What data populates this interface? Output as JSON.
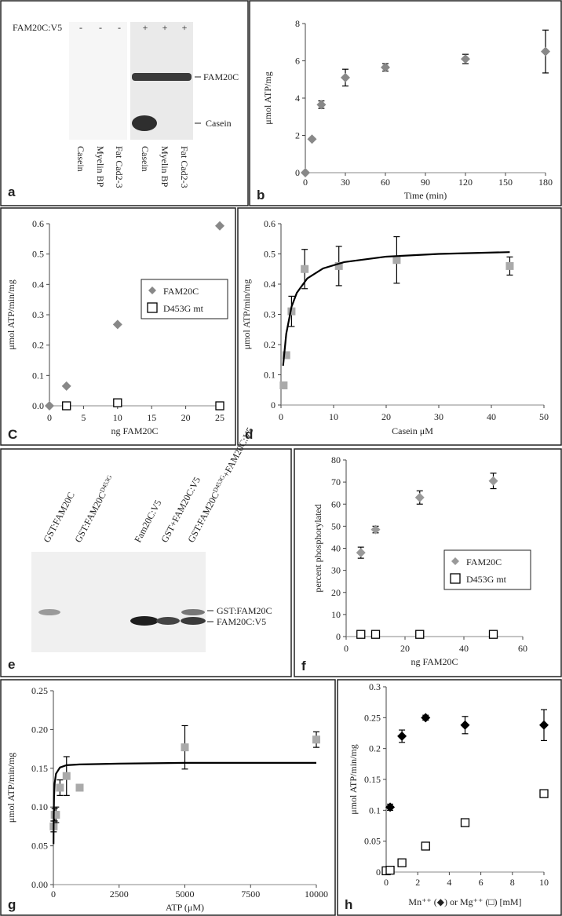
{
  "gel_a": {
    "panel_label": "a",
    "row_label": "FAM20C:V5",
    "signs": [
      "-",
      "-",
      "-",
      "+",
      "+",
      "+"
    ],
    "band_labels": [
      "FAM20C",
      "Casein"
    ],
    "lanes": [
      "Casein",
      "Myelin BP",
      "Fat Cad2-3",
      "Casein",
      "Myelin BP",
      "Fat Cad2-3"
    ]
  },
  "gel_e": {
    "panel_label": "e",
    "lanes": [
      "GST:FAM20C",
      [
        "GST:FAM20C",
        "D453G"
      ],
      "Fam20C:V5",
      "GST+FAM20C:V5",
      [
        "GST:FAM20C",
        "D453G",
        "+FAM20C:V5"
      ]
    ],
    "band_labels": [
      "GST:FAM20C",
      "FAM20C:V5"
    ]
  },
  "chart_data": [
    {
      "type": "scatter",
      "panel_label": "b",
      "xlabel": "Time (min)",
      "ylabel": "μmol ATP/mg",
      "xlim": [
        0,
        180
      ],
      "xticks": [
        0,
        30,
        60,
        90,
        120,
        150,
        180
      ],
      "ylim": [
        0,
        8
      ],
      "yticks": [
        0,
        2,
        4,
        6,
        8
      ],
      "series": [
        {
          "marker": "diamond",
          "color": "#888888",
          "x": [
            0,
            5,
            12,
            30,
            60,
            120,
            180
          ],
          "values": [
            0,
            1.8,
            3.65,
            5.1,
            5.65,
            6.1,
            6.5
          ],
          "errors": [
            0,
            0,
            0.2,
            0.45,
            0.2,
            0.25,
            1.15
          ]
        }
      ]
    },
    {
      "type": "scatter",
      "panel_label": "C",
      "xlabel": "ng FAM20C",
      "ylabel": "μmol ATP/min/mg",
      "xlim": [
        0,
        25
      ],
      "xticks": [
        0,
        5,
        10,
        15,
        20,
        25
      ],
      "ylim": [
        0,
        0.6
      ],
      "yticks": [
        {
          "value": 0,
          "label": "0.0"
        },
        0.1,
        0.2,
        0.3,
        0.4,
        0.5,
        0.6
      ],
      "legend": "center right",
      "series": [
        {
          "name": "FAM20C",
          "marker": "diamond",
          "color": "#888888",
          "x": [
            0,
            2.5,
            10,
            25
          ],
          "values": [
            0,
            0.065,
            0.268,
            0.593
          ]
        },
        {
          "name": "D453G mt",
          "marker": "open-square",
          "color": "#000000",
          "x": [
            2.5,
            10,
            25
          ],
          "values": [
            0,
            0.01,
            0
          ]
        }
      ]
    },
    {
      "type": "scatter",
      "panel_label": "d",
      "xlabel": "Casein μM",
      "ylabel": "μmol ATP/min/mg",
      "xlim": [
        0,
        50
      ],
      "xticks": [
        0,
        10,
        20,
        30,
        40,
        50
      ],
      "ylim": [
        0,
        0.6
      ],
      "yticks": [
        0,
        0.1,
        0.2,
        0.3,
        0.4,
        0.5,
        0.6
      ],
      "series": [
        {
          "marker": "square",
          "color": "#aaaaaa",
          "x": [
            0.5,
            1,
            2,
            4.5,
            11,
            22,
            43.5
          ],
          "values": [
            0.065,
            0.165,
            0.31,
            0.45,
            0.46,
            0.48,
            0.46
          ],
          "errors": [
            null,
            null,
            0.05,
            0.065,
            0.065,
            0.077,
            0.03
          ]
        },
        {
          "marker": "line",
          "color": "#000000",
          "x": [
            0.4,
            1,
            2,
            3,
            5,
            8,
            12,
            20,
            30,
            43.5
          ],
          "values": [
            0.13,
            0.236,
            0.325,
            0.371,
            0.419,
            0.452,
            0.473,
            0.491,
            0.5,
            0.506
          ]
        }
      ]
    },
    {
      "type": "scatter",
      "panel_label": "f",
      "xlabel": "ng FAM20C",
      "ylabel": "percent phosphorylated",
      "xlim": [
        0,
        60
      ],
      "xticks": [
        0,
        20,
        40,
        60
      ],
      "ylim": [
        0,
        80
      ],
      "yticks": [
        0,
        10,
        20,
        30,
        40,
        50,
        60,
        70,
        80
      ],
      "legend": "lower right",
      "series": [
        {
          "name": "FAM20C",
          "marker": "diamond",
          "color": "#999999",
          "x": [
            5,
            10,
            25,
            50
          ],
          "values": [
            38,
            48.5,
            63,
            70.5
          ],
          "errors": [
            2.5,
            1.5,
            3,
            3.5
          ]
        },
        {
          "name": "D453G mt",
          "marker": "open-square",
          "color": "#000000",
          "x": [
            5,
            10,
            25,
            50
          ],
          "values": [
            1,
            1,
            1,
            1
          ]
        }
      ]
    },
    {
      "type": "scatter",
      "panel_label": "g",
      "xlabel": "ATP (μM)",
      "ylabel": "μmol ATP/min/mg",
      "xlim": [
        0,
        10000
      ],
      "xticks": [
        0,
        2500,
        5000,
        7500,
        10000
      ],
      "ylim": [
        0,
        0.25
      ],
      "yticks": [
        {
          "value": 0,
          "label": "0.00"
        },
        0.05,
        {
          "value": 0.1,
          "label": "0.10"
        },
        0.15,
        {
          "value": 0.2,
          "label": "0.20"
        },
        0.25
      ],
      "series": [
        {
          "marker": "square",
          "color": "#aaaaaa",
          "x": [
            10,
            50,
            100,
            250,
            500,
            1000,
            5000,
            10000
          ],
          "values": [
            0.075,
            0.09,
            0.09,
            0.125,
            0.14,
            0.125,
            0.177,
            0.187
          ],
          "errors": [
            0.007,
            0.008,
            0.01,
            0.01,
            0.025,
            0.004,
            0.028,
            0.01
          ]
        },
        {
          "marker": "line",
          "color": "#000000",
          "x": [
            5,
            10,
            25,
            50,
            100,
            250,
            500,
            1000,
            2500,
            5000,
            10000
          ],
          "values": [
            0.0523,
            0.0785,
            0.112,
            0.131,
            0.143,
            0.151,
            0.154,
            0.155,
            0.156,
            0.157,
            0.157
          ]
        }
      ]
    },
    {
      "type": "scatter",
      "panel_label": "h",
      "xlabel": "Mn⁺⁺ (◆) or Mg⁺⁺ (□) [mM]",
      "ylabel": "μmol ATP/min/mg",
      "xlim": [
        0,
        10
      ],
      "xticks": [
        0,
        2,
        4,
        6,
        8,
        10
      ],
      "ylim": [
        0,
        0.3
      ],
      "yticks": [
        0,
        0.05,
        0.1,
        0.15,
        0.2,
        0.25,
        0.3
      ],
      "series": [
        {
          "marker": "diamond",
          "color": "#000000",
          "x": [
            0.25,
            1,
            2.5,
            5,
            10
          ],
          "values": [
            0.105,
            0.22,
            0.25,
            0.238,
            0.238
          ],
          "errors": [
            0.005,
            0.01,
            0.004,
            0.014,
            0.025
          ]
        },
        {
          "marker": "open-square",
          "color": "#000000",
          "x": [
            0,
            0.25,
            1,
            2.5,
            5,
            10
          ],
          "values": [
            0.002,
            0.003,
            0.015,
            0.042,
            0.08,
            0.127
          ],
          "errors": [
            null,
            null,
            null,
            null,
            null,
            0.004
          ]
        }
      ]
    }
  ]
}
